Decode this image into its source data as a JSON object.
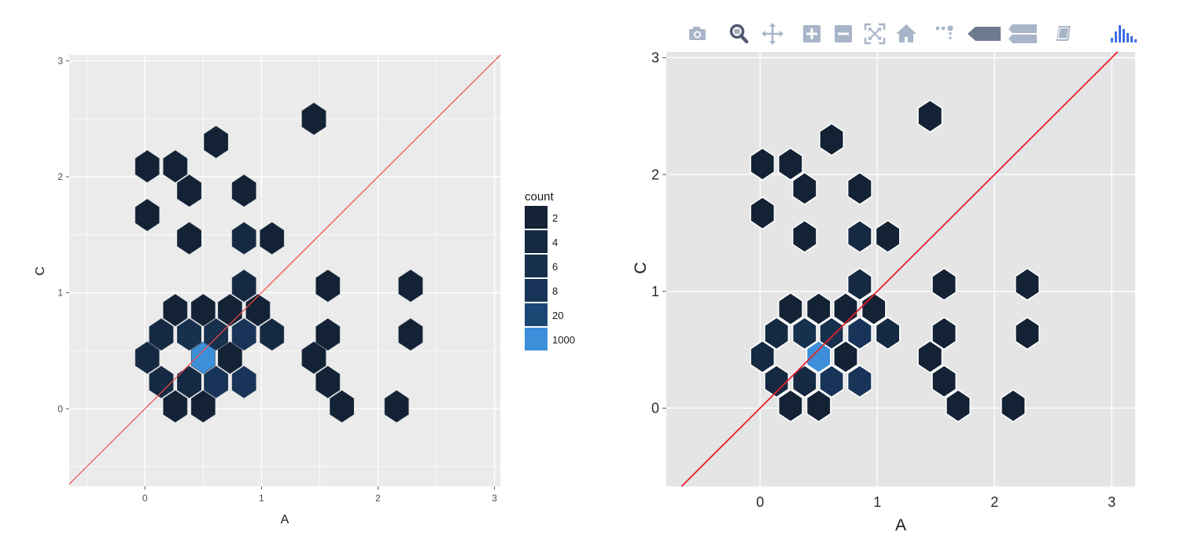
{
  "chart_data": [
    {
      "type": "hexbin",
      "renderer": "ggplot2",
      "xlabel": "A",
      "ylabel": "C",
      "xlim": [
        -0.65,
        3.05
      ],
      "ylim": [
        -0.67,
        3.05
      ],
      "xticks": [
        0,
        1,
        2,
        3
      ],
      "yticks": [
        0,
        1,
        2,
        3
      ],
      "grid": true,
      "reference_line": {
        "slope": 1,
        "intercept": 0,
        "color": "#f04b4b"
      },
      "legend": {
        "title": "count",
        "placement": "right",
        "entries": [
          {
            "label": "2",
            "color": "#132335"
          },
          {
            "label": "4",
            "color": "#152a42"
          },
          {
            "label": "6",
            "color": "#16304d"
          },
          {
            "label": "8",
            "color": "#183559"
          },
          {
            "label": "20",
            "color": "#1c4775"
          },
          {
            "label": "1000",
            "color": "#3c8fd8"
          }
        ]
      },
      "bins": [
        {
          "x": 1.45,
          "y": 2.5,
          "count": 2
        },
        {
          "x": 0.61,
          "y": 2.3,
          "count": 2
        },
        {
          "x": 0.02,
          "y": 2.09,
          "count": 2
        },
        {
          "x": 0.26,
          "y": 2.09,
          "count": 2
        },
        {
          "x": 0.38,
          "y": 1.88,
          "count": 2
        },
        {
          "x": 0.85,
          "y": 1.88,
          "count": 2
        },
        {
          "x": 0.02,
          "y": 1.67,
          "count": 2
        },
        {
          "x": 0.38,
          "y": 1.47,
          "count": 2
        },
        {
          "x": 0.85,
          "y": 1.47,
          "count": 4
        },
        {
          "x": 1.09,
          "y": 1.47,
          "count": 2
        },
        {
          "x": 0.85,
          "y": 1.06,
          "count": 4
        },
        {
          "x": 1.57,
          "y": 1.06,
          "count": 2
        },
        {
          "x": 2.28,
          "y": 1.06,
          "count": 2
        },
        {
          "x": 0.26,
          "y": 0.85,
          "count": 2
        },
        {
          "x": 0.5,
          "y": 0.85,
          "count": 2
        },
        {
          "x": 0.73,
          "y": 0.85,
          "count": 2
        },
        {
          "x": 0.97,
          "y": 0.85,
          "count": 2
        },
        {
          "x": 0.14,
          "y": 0.64,
          "count": 4
        },
        {
          "x": 0.38,
          "y": 0.64,
          "count": 6
        },
        {
          "x": 0.61,
          "y": 0.64,
          "count": 6
        },
        {
          "x": 0.85,
          "y": 0.64,
          "count": 8
        },
        {
          "x": 1.09,
          "y": 0.64,
          "count": 4
        },
        {
          "x": 1.57,
          "y": 0.64,
          "count": 2
        },
        {
          "x": 2.28,
          "y": 0.64,
          "count": 2
        },
        {
          "x": 0.02,
          "y": 0.44,
          "count": 4
        },
        {
          "x": 0.5,
          "y": 0.44,
          "count": 1000
        },
        {
          "x": 0.73,
          "y": 0.44,
          "count": 2
        },
        {
          "x": 1.45,
          "y": 0.44,
          "count": 2
        },
        {
          "x": 0.14,
          "y": 0.23,
          "count": 4
        },
        {
          "x": 0.38,
          "y": 0.23,
          "count": 4
        },
        {
          "x": 0.61,
          "y": 0.23,
          "count": 8
        },
        {
          "x": 0.85,
          "y": 0.23,
          "count": 8
        },
        {
          "x": 1.57,
          "y": 0.23,
          "count": 2
        },
        {
          "x": 0.26,
          "y": 0.02,
          "count": 2
        },
        {
          "x": 0.5,
          "y": 0.02,
          "count": 2
        },
        {
          "x": 1.69,
          "y": 0.02,
          "count": 2
        },
        {
          "x": 2.16,
          "y": 0.02,
          "count": 2
        }
      ]
    },
    {
      "type": "hexbin",
      "renderer": "plotly",
      "xlabel": "A",
      "ylabel": "C",
      "xlim": [
        -0.8,
        3.2
      ],
      "ylim": [
        -0.67,
        3.05
      ],
      "xticks": [
        0,
        1,
        2,
        3
      ],
      "yticks": [
        0,
        1,
        2,
        3
      ],
      "grid": true,
      "reference_line": {
        "slope": 1,
        "intercept": 0,
        "color": "#e8202a"
      },
      "bins_same_as_left": true
    }
  ],
  "toolbar": {
    "icons": [
      {
        "name": "camera-icon",
        "label": "Download plot as a png"
      },
      {
        "name": "zoom-icon",
        "label": "Zoom"
      },
      {
        "name": "pan-icon",
        "label": "Pan"
      },
      {
        "name": "zoom-in-icon",
        "label": "Zoom in"
      },
      {
        "name": "zoom-out-icon",
        "label": "Zoom out"
      },
      {
        "name": "autoscale-icon",
        "label": "Autoscale"
      },
      {
        "name": "home-icon",
        "label": "Reset axes"
      },
      {
        "name": "spikelines-icon",
        "label": "Toggle Spike Lines"
      },
      {
        "name": "hover-closest-icon",
        "label": "Show closest data on hover"
      },
      {
        "name": "hover-compare-icon",
        "label": "Compare data on hover"
      },
      {
        "name": "edit-chart-icon",
        "label": "Edit in Chart Studio"
      },
      {
        "name": "plotly-logo-icon",
        "label": "Produced with Plotly"
      }
    ],
    "icon_color": "#a8b4c8",
    "active_icon_color": "#505a70",
    "logo_color": "#3f6ee8"
  }
}
